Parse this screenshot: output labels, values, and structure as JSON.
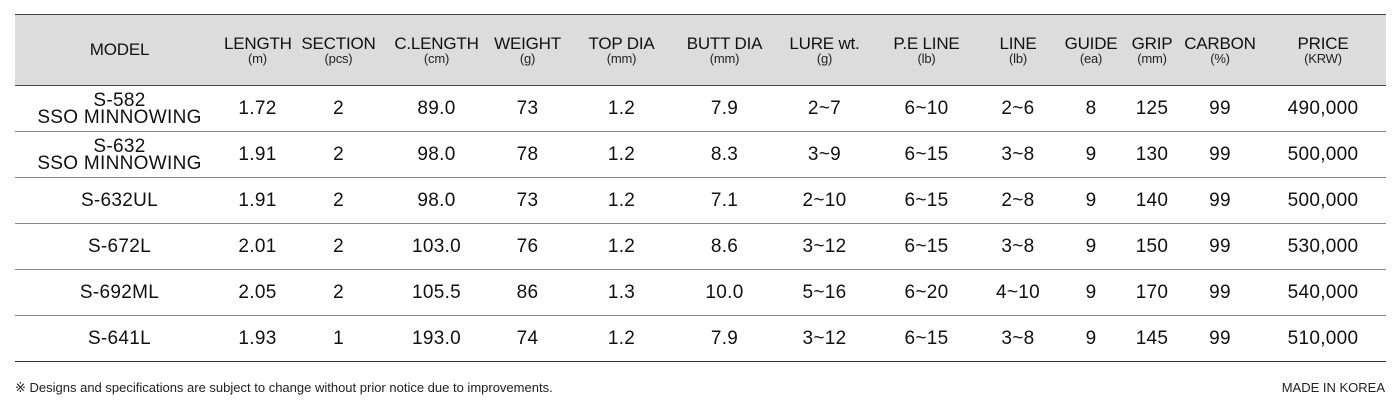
{
  "table": {
    "headers": [
      {
        "label": "MODEL",
        "unit": ""
      },
      {
        "label": "LENGTH",
        "unit": "(m)"
      },
      {
        "label": "SECTION",
        "unit": "(pcs)"
      },
      {
        "label": "C.LENGTH",
        "unit": "(cm)"
      },
      {
        "label": "WEIGHT",
        "unit": "(g)"
      },
      {
        "label": "TOP DIA",
        "unit": "(mm)"
      },
      {
        "label": "BUTT DIA",
        "unit": "(mm)"
      },
      {
        "label": "LURE wt.",
        "unit": "(g)"
      },
      {
        "label": "P.E LINE",
        "unit": "(lb)"
      },
      {
        "label": "LINE",
        "unit": "(lb)"
      },
      {
        "label": "GUIDE",
        "unit": "(ea)"
      },
      {
        "label": "GRIP",
        "unit": "(mm)"
      },
      {
        "label": "CARBON",
        "unit": "(%)"
      },
      {
        "label": "PRICE",
        "unit": "(KRW)"
      }
    ],
    "rows": [
      {
        "model": [
          "S-582",
          "SSO MINNOWING"
        ],
        "cells": [
          "1.72",
          "2",
          "89.0",
          "73",
          "1.2",
          "7.9",
          "2~7",
          "6~10",
          "2~6",
          "8",
          "125",
          "99",
          "490,000"
        ]
      },
      {
        "model": [
          "S-632",
          "SSO MINNOWING"
        ],
        "cells": [
          "1.91",
          "2",
          "98.0",
          "78",
          "1.2",
          "8.3",
          "3~9",
          "6~15",
          "3~8",
          "9",
          "130",
          "99",
          "500,000"
        ]
      },
      {
        "model": [
          "S-632UL"
        ],
        "cells": [
          "1.91",
          "2",
          "98.0",
          "73",
          "1.2",
          "7.1",
          "2~10",
          "6~15",
          "2~8",
          "9",
          "140",
          "99",
          "500,000"
        ]
      },
      {
        "model": [
          "S-672L"
        ],
        "cells": [
          "2.01",
          "2",
          "103.0",
          "76",
          "1.2",
          "8.6",
          "3~12",
          "6~15",
          "3~8",
          "9",
          "150",
          "99",
          "530,000"
        ]
      },
      {
        "model": [
          "S-692ML"
        ],
        "cells": [
          "2.05",
          "2",
          "105.5",
          "86",
          "1.3",
          "10.0",
          "5~16",
          "6~20",
          "4~10",
          "9",
          "170",
          "99",
          "540,000"
        ]
      },
      {
        "model": [
          "S-641L"
        ],
        "cells": [
          "1.93",
          "1",
          "193.0",
          "74",
          "1.2",
          "7.9",
          "3~12",
          "6~15",
          "3~8",
          "9",
          "145",
          "99",
          "510,000"
        ]
      }
    ]
  },
  "footer": {
    "note": "※ Designs and specifications are subject to change without prior notice due to improvements.",
    "origin": "MADE IN KOREA"
  }
}
